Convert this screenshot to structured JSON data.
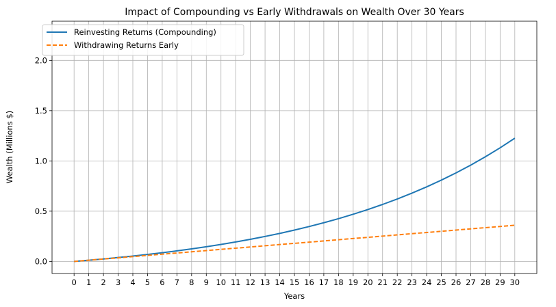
{
  "chart_data": {
    "type": "line",
    "title": "Impact of Compounding vs Early Withdrawals on Wealth Over 30 Years",
    "xlabel": "Years",
    "ylabel": "Wealth (Millions $)",
    "xlim": [
      -1.5,
      31.5
    ],
    "ylim": [
      -0.12,
      2.39
    ],
    "grid": true,
    "legend_position": "top-left",
    "x": [
      0,
      1,
      2,
      3,
      4,
      5,
      6,
      7,
      8,
      9,
      10,
      11,
      12,
      13,
      14,
      15,
      16,
      17,
      18,
      19,
      20,
      21,
      22,
      23,
      24,
      25,
      26,
      27,
      28,
      29,
      30
    ],
    "xticks": [
      "0",
      "1",
      "2",
      "3",
      "4",
      "5",
      "6",
      "7",
      "8",
      "9",
      "10",
      "11",
      "12",
      "13",
      "14",
      "15",
      "16",
      "17",
      "18",
      "19",
      "20",
      "21",
      "22",
      "23",
      "24",
      "25",
      "26",
      "27",
      "28",
      "29",
      "30"
    ],
    "yticks": [
      "0.0",
      "0.5",
      "1.0",
      "1.5",
      "2.0"
    ],
    "ytick_values": [
      0,
      0.5,
      1.0,
      1.5,
      2.0
    ],
    "series": [
      {
        "name": "Reinvesting Returns (Compounding)",
        "color": "#1f77b4",
        "style": "solid",
        "values": [
          0.0,
          0.012,
          0.0248,
          0.0386,
          0.0535,
          0.0694,
          0.0866,
          0.105,
          0.1249,
          0.1462,
          0.1691,
          0.1937,
          0.2201,
          0.2485,
          0.279,
          0.3118,
          0.3471,
          0.385,
          0.4257,
          0.4695,
          0.5165,
          0.567,
          0.6212,
          0.6794,
          0.7419,
          0.809,
          0.881,
          0.9583,
          1.0413,
          1.1303,
          1.2259
        ]
      },
      {
        "name": "Withdrawing Returns Early",
        "color": "#ff7f0e",
        "style": "dashed",
        "values": [
          0.0,
          0.012,
          0.024,
          0.036,
          0.048,
          0.06,
          0.072,
          0.084,
          0.096,
          0.108,
          0.12,
          0.132,
          0.144,
          0.156,
          0.168,
          0.18,
          0.192,
          0.204,
          0.216,
          0.228,
          0.24,
          0.252,
          0.264,
          0.276,
          0.288,
          0.3,
          0.312,
          0.324,
          0.336,
          0.348,
          0.36
        ]
      }
    ]
  }
}
